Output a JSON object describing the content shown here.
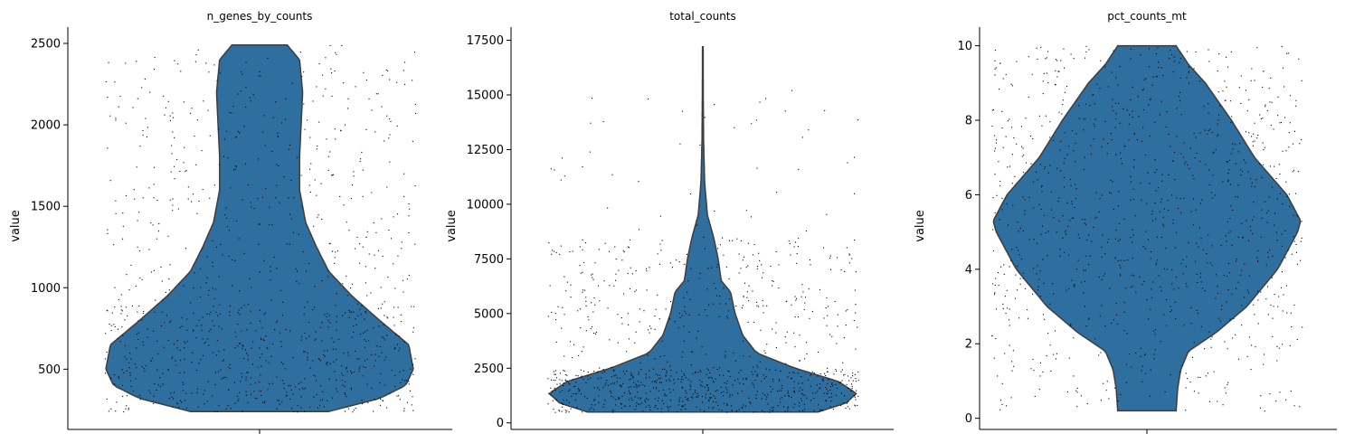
{
  "figure": {
    "violin_color": "#2f6fa0",
    "edge_color": "#3d3d3d",
    "point_color": "#000000"
  },
  "chart_data": [
    {
      "type": "violin",
      "title": "n_genes_by_counts",
      "ylabel": "value",
      "ylim": [
        130,
        2600
      ],
      "yticks": [
        500,
        1000,
        1500,
        2000,
        2500
      ],
      "ytick_labels": [
        "500",
        "1000",
        "1500",
        "2000",
        "2500"
      ],
      "data_min": 240,
      "data_max": 2490,
      "density_profile": [
        [
          240,
          0.45
        ],
        [
          320,
          0.78
        ],
        [
          400,
          0.95
        ],
        [
          500,
          1.0
        ],
        [
          650,
          0.97
        ],
        [
          800,
          0.78
        ],
        [
          950,
          0.6
        ],
        [
          1100,
          0.45
        ],
        [
          1250,
          0.37
        ],
        [
          1400,
          0.3
        ],
        [
          1600,
          0.26
        ],
        [
          1800,
          0.26
        ],
        [
          2000,
          0.27
        ],
        [
          2200,
          0.28
        ],
        [
          2400,
          0.26
        ],
        [
          2490,
          0.18
        ]
      ],
      "n_points": 1000,
      "point_distribution": [
        [
          240,
          900,
          0.55
        ],
        [
          900,
          2490,
          0.45
        ]
      ]
    },
    {
      "type": "violin",
      "title": "total_counts",
      "ylabel": "value",
      "ylim": [
        -300,
        18100
      ],
      "yticks": [
        0,
        2500,
        5000,
        7500,
        10000,
        12500,
        15000,
        17500
      ],
      "ytick_labels": [
        "0",
        "2500",
        "5000",
        "7500",
        "10000",
        "12500",
        "15000",
        "17500"
      ],
      "data_min": 500,
      "data_max": 17200,
      "density_profile": [
        [
          500,
          0.75
        ],
        [
          900,
          0.93
        ],
        [
          1350,
          1.0
        ],
        [
          1900,
          0.88
        ],
        [
          2500,
          0.6
        ],
        [
          3200,
          0.35
        ],
        [
          4000,
          0.26
        ],
        [
          5000,
          0.21
        ],
        [
          6000,
          0.18
        ],
        [
          6500,
          0.12
        ],
        [
          7500,
          0.1
        ],
        [
          8500,
          0.07
        ],
        [
          9500,
          0.03
        ],
        [
          11000,
          0.012
        ],
        [
          13000,
          0.005
        ],
        [
          15000,
          0.003
        ],
        [
          17200,
          0.002
        ]
      ],
      "n_points": 1000,
      "point_distribution": [
        [
          500,
          2500,
          0.6
        ],
        [
          2500,
          8500,
          0.36
        ],
        [
          8500,
          15500,
          0.04
        ]
      ]
    },
    {
      "type": "violin",
      "title": "pct_counts_mt",
      "ylabel": "value",
      "ylim": [
        -0.3,
        10.5
      ],
      "yticks": [
        0,
        2,
        4,
        6,
        8,
        10
      ],
      "ytick_labels": [
        "0",
        "2",
        "4",
        "6",
        "8",
        "10"
      ],
      "data_min": 0.2,
      "data_max": 10,
      "density_profile": [
        [
          0.2,
          0.19
        ],
        [
          0.8,
          0.2
        ],
        [
          1.3,
          0.22
        ],
        [
          1.8,
          0.27
        ],
        [
          2.3,
          0.45
        ],
        [
          3.0,
          0.65
        ],
        [
          4.0,
          0.85
        ],
        [
          5.0,
          0.98
        ],
        [
          5.3,
          1.0
        ],
        [
          6.0,
          0.91
        ],
        [
          7.0,
          0.7
        ],
        [
          8.0,
          0.55
        ],
        [
          9.0,
          0.38
        ],
        [
          9.5,
          0.27
        ],
        [
          10.0,
          0.19
        ]
      ],
      "n_points": 1000,
      "point_distribution": [
        [
          0.2,
          2.5,
          0.15
        ],
        [
          2.5,
          8,
          0.65
        ],
        [
          8,
          10,
          0.2
        ]
      ]
    }
  ]
}
